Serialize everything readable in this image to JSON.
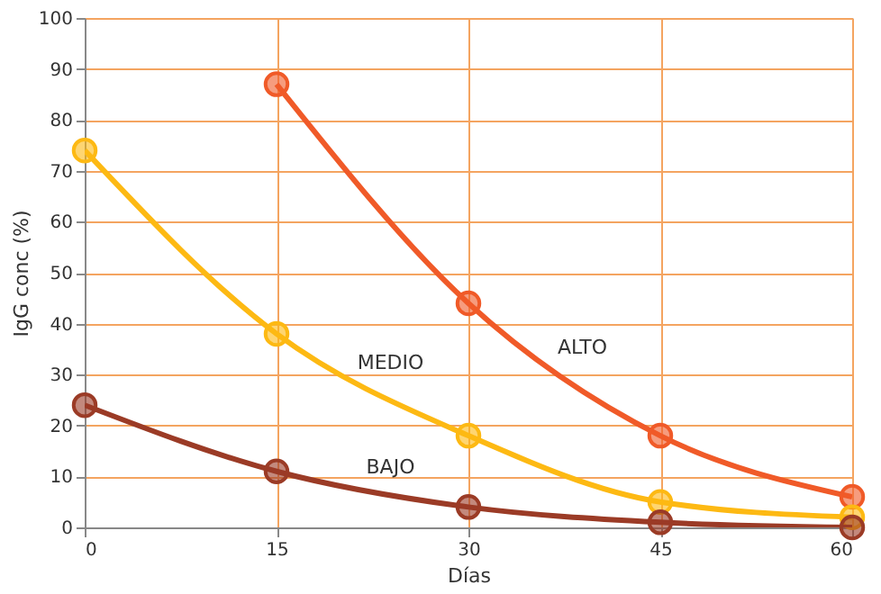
{
  "chart_data": {
    "type": "line",
    "xlabel": "Días",
    "ylabel": "IgG conc (%)",
    "x": [
      0,
      15,
      30,
      45,
      60
    ],
    "series": [
      {
        "name": "ALTO",
        "color": "#f05a28",
        "x": [
          15,
          30,
          45,
          60
        ],
        "values": [
          87,
          44,
          18,
          6
        ]
      },
      {
        "name": "MEDIO",
        "color": "#fdb913",
        "values": [
          74,
          38,
          18,
          5,
          2
        ]
      },
      {
        "name": "BAJO",
        "color": "#9b3b26",
        "values": [
          24,
          11,
          4,
          1,
          0
        ]
      }
    ],
    "xlim": [
      0,
      60
    ],
    "xticks": [
      0,
      15,
      30,
      45,
      60
    ],
    "ylim": [
      0,
      100
    ],
    "yticks": [
      0,
      10,
      20,
      30,
      40,
      50,
      60,
      70,
      80,
      90,
      100
    ],
    "grid": true,
    "marker": "circle",
    "line_style": "solid",
    "legend": false
  }
}
